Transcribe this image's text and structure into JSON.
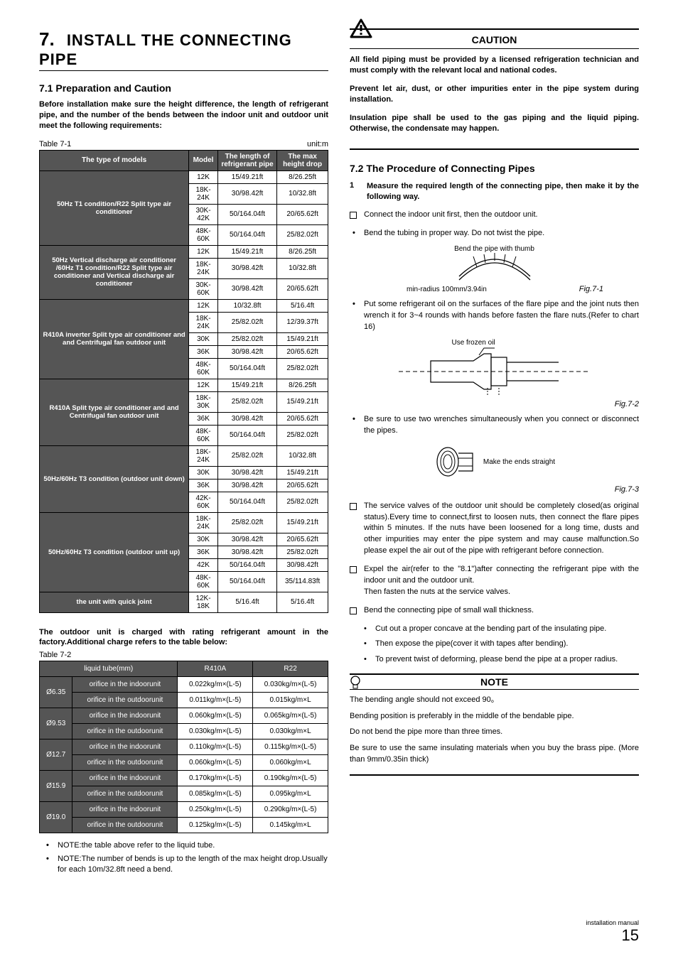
{
  "page": {
    "footer_label": "installation manual",
    "page_number": "15"
  },
  "left": {
    "section_number": "7.",
    "section_title": "INSTALL THE CONNECTING PIPE",
    "sub1_title": "7.1  Preparation and Caution",
    "intro": "Before installation make sure the height difference, the length of refrigerant pipe, and the number of the bends between the indoor unit and outdoor unit meet the following requirements:",
    "table1_label": "Table 7-1",
    "table1_unit": "unit:m",
    "t1_head": [
      "The type of models",
      "Model",
      "The length of refrigerant pipe",
      "The max height drop"
    ],
    "t1": [
      {
        "label": "50Hz T1 condition/R22 Split type air conditioner",
        "rows": [
          [
            "12K",
            "15/49.21ft",
            "8/26.25ft"
          ],
          [
            "18K-24K",
            "30/98.42ft",
            "10/32.8ft"
          ],
          [
            "30K-42K",
            "50/164.04ft",
            "20/65.62ft"
          ],
          [
            "48K-60K",
            "50/164.04ft",
            "25/82.02ft"
          ]
        ]
      },
      {
        "label": "50Hz Vertical discharge air conditioner /60Hz T1 condition/R22 Split type air conditioner and Vertical discharge air conditioner",
        "rows": [
          [
            "12K",
            "15/49.21ft",
            "8/26.25ft"
          ],
          [
            "18K-24K",
            "30/98.42ft",
            "10/32.8ft"
          ],
          [
            "30K-60K",
            "30/98.42ft",
            "20/65.62ft"
          ]
        ]
      },
      {
        "label": "R410A inverter Split type air conditioner and and Centrifugal fan outdoor unit",
        "rows": [
          [
            "12K",
            "10/32.8ft",
            "5/16.4ft"
          ],
          [
            "18K-24K",
            "25/82.02ft",
            "12/39.37ft"
          ],
          [
            "30K",
            "25/82.02ft",
            "15/49.21ft"
          ],
          [
            "36K",
            "30/98.42ft",
            "20/65.62ft"
          ],
          [
            "48K-60K",
            "50/164.04ft",
            "25/82.02ft"
          ]
        ]
      },
      {
        "label": "R410A Split type air conditioner and and Centrifugal fan outdoor unit",
        "rows": [
          [
            "12K",
            "15/49.21ft",
            "8/26.25ft"
          ],
          [
            "18K-30K",
            "25/82.02ft",
            "15/49.21ft"
          ],
          [
            "36K",
            "30/98.42ft",
            "20/65.62ft"
          ],
          [
            "48K-60K",
            "50/164.04ft",
            "25/82.02ft"
          ]
        ]
      },
      {
        "label": "50Hz/60Hz T3 condition (outdoor unit down)",
        "rows": [
          [
            "18K-24K",
            "25/82.02ft",
            "10/32.8ft"
          ],
          [
            "30K",
            "30/98.42ft",
            "15/49.21ft"
          ],
          [
            "36K",
            "30/98.42ft",
            "20/65.62ft"
          ],
          [
            "42K-60K",
            "50/164.04ft",
            "25/82.02ft"
          ]
        ]
      },
      {
        "label": "50Hz/60Hz T3 condition (outdoor unit up)",
        "rows": [
          [
            "18K-24K",
            "25/82.02ft",
            "15/49.21ft"
          ],
          [
            "30K",
            "30/98.42ft",
            "20/65.62ft"
          ],
          [
            "36K",
            "30/98.42ft",
            "25/82.02ft"
          ],
          [
            "42K",
            "50/164.04ft",
            "30/98.42ft"
          ],
          [
            "48K-60K",
            "50/164.04ft",
            "35/114.83ft"
          ]
        ]
      },
      {
        "label": "the unit with quick joint",
        "rows": [
          [
            "12K-18K",
            "5/16.4ft",
            "5/16.4ft"
          ]
        ]
      }
    ],
    "between": "The outdoor unit is charged with rating refrigerant amount in the factory.Additional charge refers to the table below:",
    "table2_label": "Table 7-2",
    "t2_head": [
      "liquid tube(mm)",
      "",
      "R410A",
      "R22"
    ],
    "t2": [
      {
        "dia": "Ø6.35",
        "rows": [
          [
            "orifice in the indoorunit",
            "0.022kg/m×(L-5)",
            "0.030kg/m×(L-5)"
          ],
          [
            "orifice in the outdoorunit",
            "0.011kg/m×(L-5)",
            "0.015kg/m×L"
          ]
        ]
      },
      {
        "dia": "Ø9.53",
        "rows": [
          [
            "orifice in the indoorunit",
            "0.060kg/m×(L-5)",
            "0.065kg/m×(L-5)"
          ],
          [
            "orifice in the outdoorunit",
            "0.030kg/m×(L-5)",
            "0.030kg/m×L"
          ]
        ]
      },
      {
        "dia": "Ø12.7",
        "rows": [
          [
            "orifice in the indoorunit",
            "0.110kg/m×(L-5)",
            "0.115kg/m×(L-5)"
          ],
          [
            "orifice in the outdoorunit",
            "0.060kg/m×(L-5)",
            "0.060kg/m×L"
          ]
        ]
      },
      {
        "dia": "Ø15.9",
        "rows": [
          [
            "orifice in the indoorunit",
            "0.170kg/m×(L-5)",
            "0.190kg/m×(L-5)"
          ],
          [
            "orifice in the outdoorunit",
            "0.085kg/m×(L-5)",
            "0.095kg/m×L"
          ]
        ]
      },
      {
        "dia": "Ø19.0",
        "rows": [
          [
            "orifice in the indoorunit",
            "0.250kg/m×(L-5)",
            "0.290kg/m×(L-5)"
          ],
          [
            "orifice in the outdoorunit",
            "0.125kg/m×(L-5)",
            "0.145kg/m×L"
          ]
        ]
      }
    ],
    "notes": [
      "NOTE:the table above refer to the liquid tube.",
      "NOTE:The number of bends is up to the length of the max height drop.Usually for each 10m/32.8ft need a bend."
    ]
  },
  "right": {
    "caution_title": "CAUTION",
    "caution_paras": [
      "All field piping must be provided by a licensed refrigeration technician and must comply with the relevant local and national codes.",
      "Prevent let air, dust, or other impurities enter in the pipe system during installation.",
      "Insulation pipe shall be used to the gas piping and the liquid piping. Otherwise, the condensate may happen."
    ],
    "sub2_title": "7.2  The Procedure of Connecting Pipes",
    "step1_num": "1",
    "step1_txt": "Measure the required length of the connecting pipe,  then make it by the following way.",
    "sq_items": [
      "Connect the indoor unit first, then the outdoor unit."
    ],
    "bend_tubing": "Bend the tubing in proper way. Do not twist the pipe.",
    "fig71_top": "Bend the pipe with thumb",
    "fig71_bottom": "min-radius 100mm/3.94in",
    "fig71_cap": "Fig.7-1",
    "oil_txt": "Put some refrigerant oil on the surfaces of the flare pipe and the joint nuts then wrench it for 3~4 rounds with hands  before fasten the flare nuts.(Refer to chart 16)",
    "fig72_lbl": "Use frozen oil",
    "fig72_cap": "Fig.7-2",
    "wrench_txt": "Be sure to use two wrenches simultaneously when you connect or disconnect the pipes.",
    "fig73_lbl": "Make the ends straight",
    "fig73_cap": "Fig.7-3",
    "sq2_items": [
      "The service valves of the outdoor unit should be completely closed(as original status).Every time to connect,first to loosen nuts, then connect the flare pipes within 5 minutes. If  the nuts have been loosened for a long time, dusts and other impurities may enter the pipe system and may cause malfunction.So please expel the air out of the pipe with refrigerant before connection.",
      "Expel the air(refer to the \"8.1\")after connecting the refrigerant pipe with the indoor unit and the outdoor unit.\nThen fasten the nuts at the service valves.",
      "Bend the connecting pipe of small wall thickness."
    ],
    "sub_dots": [
      "Cut out a proper concave at the bending part of the insulating pipe.",
      "Then expose the pipe(cover it with tapes after bending).",
      "To prevent twist of deforming, please bend the pipe at a proper radius."
    ],
    "note_title": "NOTE",
    "note_paras": [
      "The bending angle should not exceed 90。",
      "Bending position is preferably in the middle of the bendable pipe.",
      "Do not bend the pipe more than three times.",
      "Be sure to use the same insulating materials when you buy the brass pipe. (More than 9mm/0.35in thick)"
    ]
  }
}
